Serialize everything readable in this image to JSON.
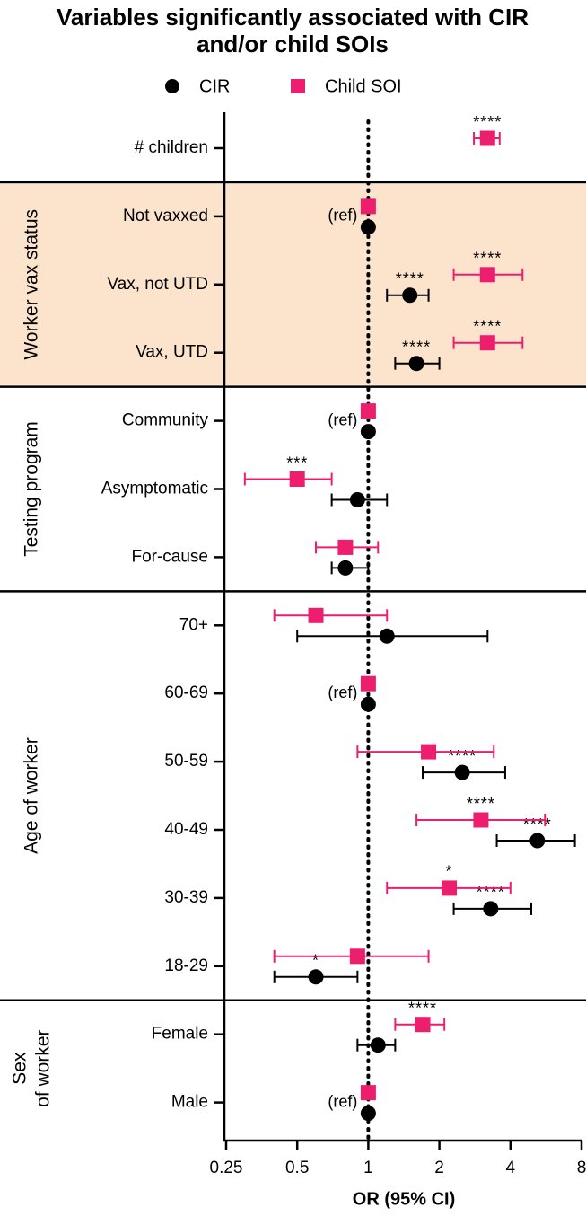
{
  "chart_data": {
    "type": "forest",
    "title": "Variables significantly associated with CIR and/or child SOIs",
    "x_label": "OR (95% CI)",
    "log_x": true,
    "xlim": [
      0.25,
      8
    ],
    "xticks": [
      0.25,
      0.5,
      1,
      2,
      4,
      8
    ],
    "ref_line": 1,
    "groups": [
      {
        "label": null,
        "categories": [
          "# children"
        ]
      },
      {
        "label": [
          "Worker vax status"
        ],
        "shade": "#fbe3cc",
        "categories": [
          "Not vaxxed",
          "Vax, not UTD",
          "Vax, UTD"
        ]
      },
      {
        "label": [
          "Testing program"
        ],
        "categories": [
          "Community",
          "Asymptomatic",
          "For-cause"
        ]
      },
      {
        "label": [
          "Age of worker"
        ],
        "categories": [
          "70+",
          "60-69",
          "50-59",
          "40-49",
          "30-39",
          "18-29"
        ]
      },
      {
        "label": [
          "Sex",
          "of worker"
        ],
        "categories": [
          "Female",
          "Male"
        ]
      }
    ],
    "notes": [
      null,
      "(ref)",
      null,
      null,
      "(ref)",
      null,
      null,
      null,
      "(ref)",
      null,
      null,
      null,
      null,
      null,
      "(ref)"
    ],
    "series": [
      {
        "name": "CIR",
        "color": "#000000",
        "marker": "circle",
        "values": [
          null,
          1,
          1.5,
          1.6,
          1,
          0.9,
          0.8,
          1.2,
          1,
          2.5,
          5.2,
          3.3,
          0.6,
          1.1,
          1
        ],
        "lower": [
          null,
          null,
          1.2,
          1.3,
          null,
          0.7,
          0.7,
          0.5,
          null,
          1.7,
          3.5,
          2.3,
          0.4,
          0.9,
          null
        ],
        "upper": [
          null,
          null,
          1.8,
          2.0,
          null,
          1.2,
          1.0,
          3.2,
          null,
          3.8,
          7.5,
          4.9,
          0.9,
          1.3,
          null
        ],
        "significance": [
          null,
          null,
          "****",
          "****",
          null,
          null,
          null,
          null,
          null,
          "****",
          "****",
          "****",
          "*",
          null,
          null
        ]
      },
      {
        "name": "Child SOI",
        "color": "#ee1e6e",
        "marker": "square",
        "values": [
          3.2,
          1,
          3.2,
          3.2,
          1,
          0.5,
          0.8,
          0.6,
          1,
          1.8,
          3.0,
          2.2,
          0.9,
          1.7,
          1
        ],
        "lower": [
          2.8,
          null,
          2.3,
          2.3,
          null,
          0.3,
          0.6,
          0.4,
          null,
          0.9,
          1.6,
          1.2,
          0.4,
          1.3,
          null
        ],
        "upper": [
          3.6,
          null,
          4.5,
          4.5,
          null,
          0.7,
          1.1,
          1.2,
          null,
          3.4,
          5.6,
          4.0,
          1.8,
          2.1,
          null
        ],
        "significance": [
          "****",
          null,
          "****",
          "****",
          null,
          "***",
          null,
          null,
          null,
          null,
          "****",
          "*",
          null,
          "****",
          null
        ]
      }
    ]
  }
}
